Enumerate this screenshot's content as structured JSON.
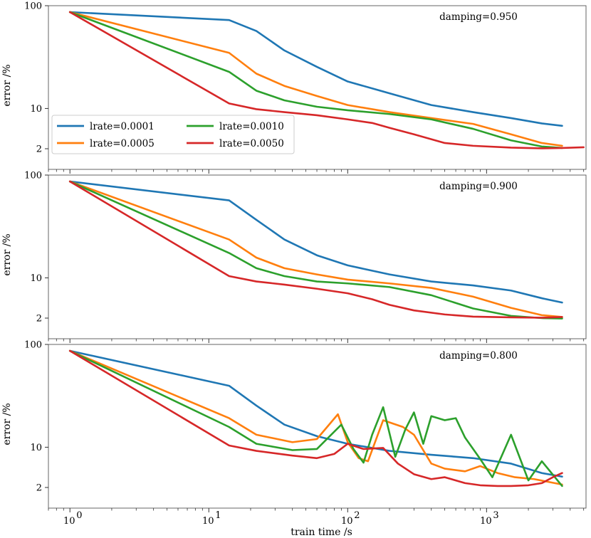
{
  "chart_data": {
    "type": "line",
    "x_scale": "log",
    "y_scale": "log-shifted",
    "xlim": [
      0.7,
      5200
    ],
    "ylim": [
      1.3,
      100
    ],
    "xlabel": "train time /s",
    "ylabel": "error /%",
    "x_ticks": [
      1,
      10,
      100,
      1000
    ],
    "x_tick_labels": [
      "10",
      "10",
      "10",
      "10"
    ],
    "x_tick_exponents": [
      "0",
      "1",
      "2",
      "3"
    ],
    "y_ticks": [
      2,
      10,
      100
    ],
    "y_tick_labels": [
      "2",
      "10",
      "100"
    ],
    "grid": false,
    "legend": {
      "placement": "lower-left",
      "panel": 0,
      "entries": [
        "lrate=0.0001",
        "lrate=0.0005",
        "lrate=0.0010",
        "lrate=0.0050"
      ]
    },
    "colors": {
      "lrate=0.0001": "#1f77b4",
      "lrate=0.0005": "#ff7f0e",
      "lrate=0.0010": "#2ca02c",
      "lrate=0.0050": "#d62728"
    },
    "panels": [
      {
        "annotation": "damping=0.950",
        "series": [
          {
            "name": "lrate=0.0001",
            "x": [
              1,
              14,
              22,
              35,
              60,
              100,
              200,
              400,
              800,
              1500,
              2500,
              3500
            ],
            "y": [
              88,
              75,
              60,
              40,
              28,
              20,
              15,
              11,
              9,
              7.5,
              6.3,
              5.8
            ]
          },
          {
            "name": "lrate=0.0005",
            "x": [
              1,
              14,
              22,
              35,
              60,
              100,
              200,
              400,
              800,
              1500,
              2500,
              3500
            ],
            "y": [
              88,
              38,
              24,
              18,
              14,
              11,
              9,
              7.5,
              6.2,
              4.2,
              2.8,
              2.4
            ]
          },
          {
            "name": "lrate=0.0010",
            "x": [
              1,
              14,
              22,
              35,
              60,
              100,
              200,
              400,
              800,
              1500,
              2500,
              3500
            ],
            "y": [
              88,
              25,
              16,
              12.5,
              10.5,
              9.5,
              8.5,
              7.2,
              5.2,
              3.2,
              2.3,
              2.1
            ]
          },
          {
            "name": "lrate=0.0050",
            "x": [
              1,
              14,
              22,
              35,
              60,
              100,
              150,
              200,
              300,
              500,
              800,
              1500,
              2500,
              3500,
              5000
            ],
            "y": [
              88,
              11.5,
              9.8,
              9,
              8.2,
              7.2,
              6.4,
              5.4,
              4.2,
              2.8,
              2.4,
              2.15,
              2.05,
              2.1,
              2.2
            ]
          }
        ]
      },
      {
        "annotation": "damping=0.900",
        "series": [
          {
            "name": "lrate=0.0001",
            "x": [
              1,
              14,
              22,
              35,
              60,
              100,
              200,
              400,
              800,
              1500,
              2500,
              3500
            ],
            "y": [
              88,
              60,
              40,
              26,
              18,
              14,
              11,
              9,
              8,
              6.8,
              5.2,
              4.4
            ]
          },
          {
            "name": "lrate=0.0005",
            "x": [
              1,
              14,
              22,
              35,
              60,
              100,
              200,
              400,
              800,
              1500,
              2500,
              3500
            ],
            "y": [
              88,
              26,
              17,
              13,
              11,
              9.5,
              8.5,
              7.4,
              5.5,
              3.5,
              2.4,
              2.15
            ]
          },
          {
            "name": "lrate=0.0010",
            "x": [
              1,
              14,
              22,
              35,
              60,
              100,
              200,
              400,
              800,
              1500,
              2500,
              3500
            ],
            "y": [
              88,
              19,
              13,
              10.5,
              9,
              8.5,
              7.6,
              5.8,
              3.4,
              2.3,
              2.0,
              1.95
            ]
          },
          {
            "name": "lrate=0.0050",
            "x": [
              1,
              14,
              22,
              35,
              60,
              100,
              150,
              200,
              300,
              500,
              800,
              1500,
              2500,
              3500
            ],
            "y": [
              88,
              10.5,
              9,
              8.2,
              7.2,
              6.2,
              5,
              4,
              3.1,
              2.5,
              2.2,
              2.1,
              2.05,
              2.15
            ]
          }
        ]
      },
      {
        "annotation": "damping=0.800",
        "series": [
          {
            "name": "lrate=0.0001",
            "x": [
              1,
              14,
              22,
              35,
              60,
              100,
              200,
              400,
              800,
              1500,
              2500,
              3500
            ],
            "y": [
              88,
              43,
              28,
              18,
              13.5,
              11,
              9,
              8,
              7.2,
              6,
              4.2,
              3.6
            ]
          },
          {
            "name": "lrate=0.0005",
            "x": [
              1,
              14,
              22,
              40,
              60,
              85,
              100,
              120,
              140,
              180,
              250,
              300,
              400,
              500,
              700,
              900,
              1200,
              1600,
              2200,
              3500
            ],
            "y": [
              88,
              21,
              14,
              11.5,
              12.5,
              23,
              11.5,
              7.2,
              6.5,
              20,
              17,
              14,
              6,
              5,
              4.5,
              5.5,
              4.2,
              3.5,
              3.2,
              2.4
            ]
          },
          {
            "name": "lrate=0.0010",
            "x": [
              1,
              14,
              22,
              40,
              60,
              90,
              110,
              130,
              150,
              180,
              220,
              260,
              300,
              350,
              400,
              500,
              600,
              700,
              900,
              1100,
              1500,
              2000,
              2500,
              3500
            ],
            "y": [
              88,
              17,
              11,
              9.2,
              9.5,
              18,
              9.5,
              6.2,
              14,
              27,
              7.5,
              16,
              24,
              11,
              22,
              20,
              21,
              13,
              7,
              3.5,
              14,
              3,
              6.5,
              2.2
            ]
          },
          {
            "name": "lrate=0.0050",
            "x": [
              1,
              14,
              22,
              40,
              60,
              80,
              100,
              130,
              180,
              230,
              300,
              400,
              500,
              700,
              900,
              1200,
              1500,
              2000,
              2500,
              3000,
              3500
            ],
            "y": [
              88,
              10.5,
              9,
              7.8,
              7.2,
              8.2,
              11,
              9.5,
              9.8,
              6,
              4,
              3.2,
              3.5,
              2.6,
              2.3,
              2.2,
              2.2,
              2.3,
              2.6,
              3.5,
              4.2
            ]
          }
        ]
      }
    ]
  }
}
